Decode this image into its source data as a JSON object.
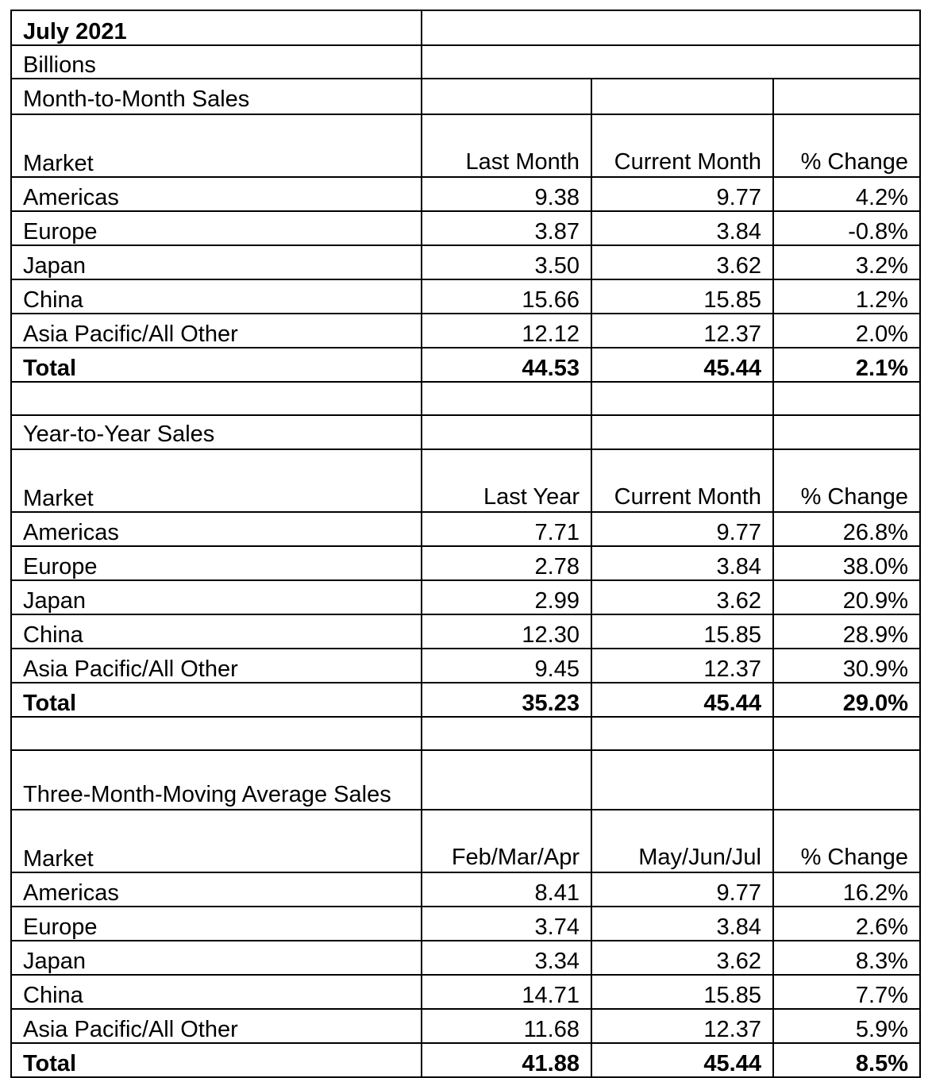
{
  "header": {
    "title": "July 2021",
    "units": "Billions"
  },
  "sections": [
    {
      "title": "Month-to-Month Sales",
      "columns": [
        "Market",
        "Last Month",
        "Current Month",
        "% Change"
      ],
      "rows": [
        [
          "Americas",
          "9.38",
          "9.77",
          "4.2%"
        ],
        [
          "Europe",
          "3.87",
          "3.84",
          "-0.8%"
        ],
        [
          "Japan",
          "3.50",
          "3.62",
          "3.2%"
        ],
        [
          "China",
          "15.66",
          "15.85",
          "1.2%"
        ],
        [
          "Asia Pacific/All Other",
          "12.12",
          "12.37",
          "2.0%"
        ]
      ],
      "total": [
        "Total",
        "44.53",
        "45.44",
        "2.1%"
      ]
    },
    {
      "title": "Year-to-Year Sales",
      "columns": [
        "Market",
        "Last Year",
        "Current Month",
        "% Change"
      ],
      "rows": [
        [
          "Americas",
          "7.71",
          "9.77",
          "26.8%"
        ],
        [
          "Europe",
          "2.78",
          "3.84",
          "38.0%"
        ],
        [
          "Japan",
          "2.99",
          "3.62",
          "20.9%"
        ],
        [
          "China",
          "12.30",
          "15.85",
          "28.9%"
        ],
        [
          "Asia Pacific/All Other",
          "9.45",
          "12.37",
          "30.9%"
        ]
      ],
      "total": [
        "Total",
        "35.23",
        "45.44",
        "29.0%"
      ]
    },
    {
      "title": "Three-Month-Moving Average Sales",
      "columns": [
        "Market",
        "Feb/Mar/Apr",
        "May/Jun/Jul",
        "% Change"
      ],
      "rows": [
        [
          "Americas",
          "8.41",
          "9.77",
          "16.2%"
        ],
        [
          "Europe",
          "3.74",
          "3.84",
          "2.6%"
        ],
        [
          "Japan",
          "3.34",
          "3.62",
          "8.3%"
        ],
        [
          "China",
          "14.71",
          "15.85",
          "7.7%"
        ],
        [
          "Asia Pacific/All Other",
          "11.68",
          "12.37",
          "5.9%"
        ]
      ],
      "total": [
        "Total",
        "41.88",
        "45.44",
        "8.5%"
      ]
    }
  ]
}
